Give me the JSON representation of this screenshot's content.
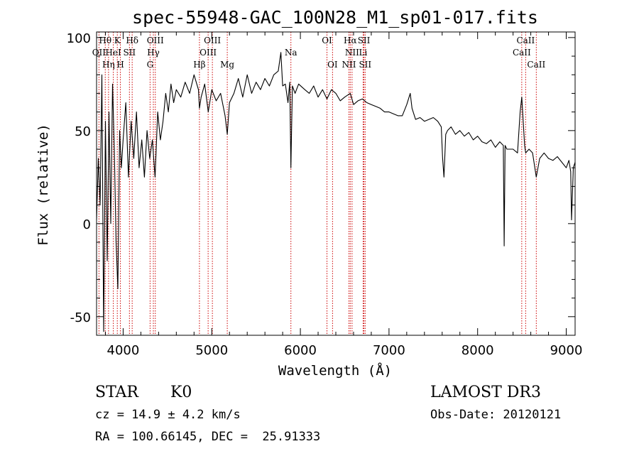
{
  "chart_data": {
    "type": "line",
    "title": "spec-55948-GAC_100N28_M1_sp01-017.fits",
    "xlabel": "Wavelength (Å)",
    "ylabel": "Flux (relative)",
    "xlim": [
      3700,
      9100
    ],
    "ylim": [
      -60,
      103
    ],
    "xticks": [
      4000,
      5000,
      6000,
      7000,
      8000,
      9000
    ],
    "yticks": [
      -50,
      0,
      50,
      100
    ],
    "series": [
      {
        "name": "flux",
        "x": [
          3700,
          3720,
          3740,
          3760,
          3780,
          3800,
          3820,
          3840,
          3860,
          3880,
          3900,
          3920,
          3940,
          3960,
          3980,
          4000,
          4030,
          4060,
          4090,
          4120,
          4150,
          4180,
          4210,
          4240,
          4270,
          4300,
          4330,
          4360,
          4390,
          4420,
          4450,
          4480,
          4510,
          4540,
          4570,
          4600,
          4650,
          4700,
          4750,
          4800,
          4850,
          4861,
          4880,
          4920,
          4960,
          5000,
          5050,
          5100,
          5150,
          5175,
          5200,
          5250,
          5300,
          5350,
          5400,
          5450,
          5500,
          5550,
          5600,
          5650,
          5700,
          5750,
          5780,
          5800,
          5830,
          5860,
          5880,
          5893,
          5910,
          5940,
          5980,
          6050,
          6100,
          6150,
          6200,
          6250,
          6300,
          6350,
          6400,
          6450,
          6500,
          6563,
          6600,
          6650,
          6700,
          6750,
          6800,
          6850,
          6900,
          6950,
          7000,
          7050,
          7100,
          7150,
          7200,
          7240,
          7260,
          7300,
          7350,
          7400,
          7450,
          7500,
          7550,
          7590,
          7605,
          7620,
          7640,
          7660,
          7700,
          7750,
          7800,
          7850,
          7900,
          7950,
          8000,
          8050,
          8100,
          8150,
          8200,
          8250,
          8290,
          8300,
          8310,
          8330,
          8400,
          8450,
          8480,
          8498,
          8530,
          8542,
          8580,
          8620,
          8662,
          8700,
          8750,
          8800,
          8850,
          8900,
          8950,
          9000,
          9030,
          9050,
          9060,
          9080,
          9100
        ],
        "values": [
          2,
          35,
          10,
          80,
          -58,
          55,
          -20,
          60,
          0,
          75,
          40,
          -10,
          -35,
          50,
          30,
          45,
          65,
          25,
          55,
          35,
          60,
          30,
          45,
          25,
          50,
          35,
          45,
          25,
          60,
          45,
          55,
          70,
          60,
          75,
          65,
          72,
          68,
          76,
          70,
          80,
          72,
          62,
          68,
          75,
          60,
          72,
          66,
          70,
          58,
          48,
          65,
          70,
          78,
          68,
          80,
          70,
          76,
          72,
          78,
          74,
          80,
          82,
          92,
          74,
          75,
          65,
          76,
          30,
          74,
          70,
          75,
          72,
          70,
          74,
          68,
          72,
          67,
          72,
          70,
          66,
          68,
          70,
          64,
          66,
          67,
          65,
          64,
          63,
          62,
          60,
          60,
          59,
          58,
          58,
          64,
          70,
          62,
          56,
          57,
          55,
          56,
          57,
          55,
          52,
          35,
          25,
          48,
          50,
          52,
          48,
          50,
          47,
          49,
          45,
          47,
          44,
          43,
          45,
          41,
          44,
          42,
          -12,
          42,
          40,
          40,
          38,
          60,
          68,
          42,
          38,
          40,
          38,
          25,
          35,
          38,
          35,
          34,
          36,
          33,
          30,
          34,
          28,
          2,
          30,
          33
        ]
      }
    ],
    "line_labels": [
      {
        "label": "Hθ",
        "wl": 3798,
        "row": 1
      },
      {
        "label": "OII",
        "wl": 3727,
        "row": 2
      },
      {
        "label": "Hη",
        "wl": 3835,
        "row": 3
      },
      {
        "label": "K",
        "wl": 3934,
        "row": 1
      },
      {
        "label": "HeI",
        "wl": 3889,
        "row": 2
      },
      {
        "label": "SII",
        "wl": 4071,
        "row": 2
      },
      {
        "label": "H",
        "wl": 3969,
        "row": 3
      },
      {
        "label": "Hδ",
        "wl": 4102,
        "row": 1
      },
      {
        "label": "OIII",
        "wl": 4363,
        "row": 1
      },
      {
        "label": "Hγ",
        "wl": 4341,
        "row": 2
      },
      {
        "label": "G",
        "wl": 4304,
        "row": 3
      },
      {
        "label": "Hβ",
        "wl": 4861,
        "row": 3
      },
      {
        "label": "OIII",
        "wl": 5007,
        "row": 1
      },
      {
        "label": "OIII",
        "wl": 4959,
        "row": 2
      },
      {
        "label": "Mg",
        "wl": 5175,
        "row": 3
      },
      {
        "label": "Na",
        "wl": 5893,
        "row": 2
      },
      {
        "label": "OI",
        "wl": 6300,
        "row": 1
      },
      {
        "label": "OI",
        "wl": 6363,
        "row": 3
      },
      {
        "label": "Hα",
        "wl": 6563,
        "row": 1
      },
      {
        "label": "NII",
        "wl": 6583,
        "row": 2
      },
      {
        "label": "NII",
        "wl": 6548,
        "row": 3
      },
      {
        "label": "SII",
        "wl": 6717,
        "row": 1
      },
      {
        "label": "Li",
        "wl": 6708,
        "row": 2
      },
      {
        "label": "SII",
        "wl": 6731,
        "row": 3
      },
      {
        "label": "CaII",
        "wl": 8542,
        "row": 1
      },
      {
        "label": "CaII",
        "wl": 8498,
        "row": 2
      },
      {
        "label": "CaII",
        "wl": 8662,
        "row": 3
      }
    ]
  },
  "info": {
    "object_class": "STAR",
    "subclass": "K0",
    "survey": "LAMOST DR3",
    "redshift": "cz = 14.9 ± 4.2 km/s",
    "obs_date": "Obs-Date: 20120121",
    "coords": "RA = 100.66145, DEC =  25.91333"
  },
  "colors": {
    "line_marker": "#cc0000",
    "spectrum": "#000000",
    "axes": "#000000"
  }
}
